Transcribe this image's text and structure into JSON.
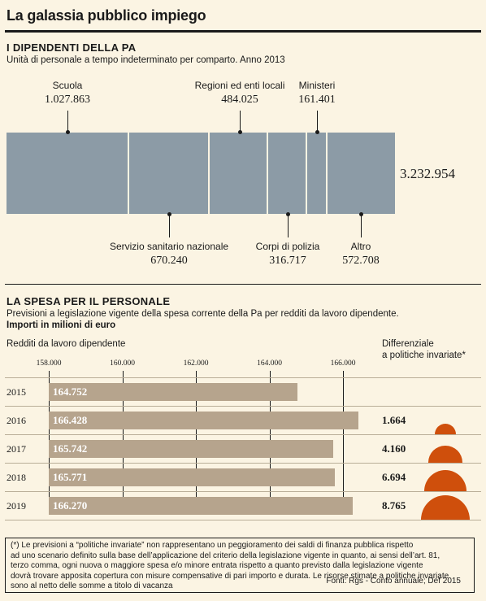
{
  "title": "La galassia pubblico impiego",
  "section1": {
    "title": "I DIPENDENTI DELLA PA",
    "subtitle": "Unità di personale a tempo indeterminato per comparto. Anno 2013",
    "total": "3.232.954"
  },
  "section2": {
    "title": "LA SPESA PER IL PERSONALE",
    "subtitle": "Previsioni a legislazione vigente della spesa corrente della Pa per redditi da lavoro dipendente.",
    "unit": "Importi in milioni di euro",
    "col_left": "Redditi da lavoro dipendente",
    "col_right_1": "Differenziale",
    "col_right_2": "a politiche invariate*"
  },
  "chart_data": [
    {
      "type": "bar",
      "stacked": "horizontal",
      "series": [
        {
          "name": "Scuola",
          "value": 1027863,
          "label": "1.027.863"
        },
        {
          "name": "Servizio sanitario nazionale",
          "value": 670240,
          "label": "670.240"
        },
        {
          "name": "Regioni ed enti locali",
          "value": 484025,
          "label": "484.025"
        },
        {
          "name": "Corpi di polizia",
          "value": 316717,
          "label": "316.717"
        },
        {
          "name": "Ministeri",
          "value": 161401,
          "label": "161.401"
        },
        {
          "name": "Altro",
          "value": 572708,
          "label": "572.708"
        }
      ],
      "total": 3232954
    },
    {
      "type": "bar",
      "orientation": "horizontal",
      "categories": [
        "2015",
        "2016",
        "2017",
        "2018",
        "2019"
      ],
      "values": [
        164752,
        166428,
        165742,
        165771,
        166270
      ],
      "value_labels": [
        "164.752",
        "166.428",
        "165.742",
        "165.771",
        "166.270"
      ],
      "xlim": [
        158000,
        167000
      ],
      "xticks": [
        158000,
        160000,
        162000,
        164000,
        166000
      ],
      "xtick_labels": [
        "158.000",
        "160.000",
        "162.000",
        "164.000",
        "166.000"
      ],
      "differential": [
        null,
        1664,
        4160,
        6694,
        8765
      ],
      "differential_labels": [
        "",
        "1.664",
        "4.160",
        "6.694",
        "8.765"
      ],
      "differential_color": "#cf4f0c",
      "bar_color": "#b6a48d"
    }
  ],
  "note": {
    "lines": [
      "(*) Le previsioni a “politiche invariate” non rappresentano un peggioramento dei saldi di finanza pubblica rispetto",
      "ad uno scenario definito sulla base dell’applicazione del criterio della legislazione vigente in quanto, ai sensi dell’art. 81,",
      "terzo comma, ogni nuova o maggiore spesa e/o minore entrata rispetto a quanto previsto dalla legislazione vigente",
      "dovrà trovare apposita copertura con misure compensative di pari importo e durata. Le risorse stimate a politiche invariate",
      "sono al netto delle somme a titolo di vacanza"
    ],
    "source": "Fonti: Rgs - Conto annuale; Def 2015"
  },
  "colors": {
    "segment": "#8c9ba6",
    "background": "#fbf4e3"
  }
}
